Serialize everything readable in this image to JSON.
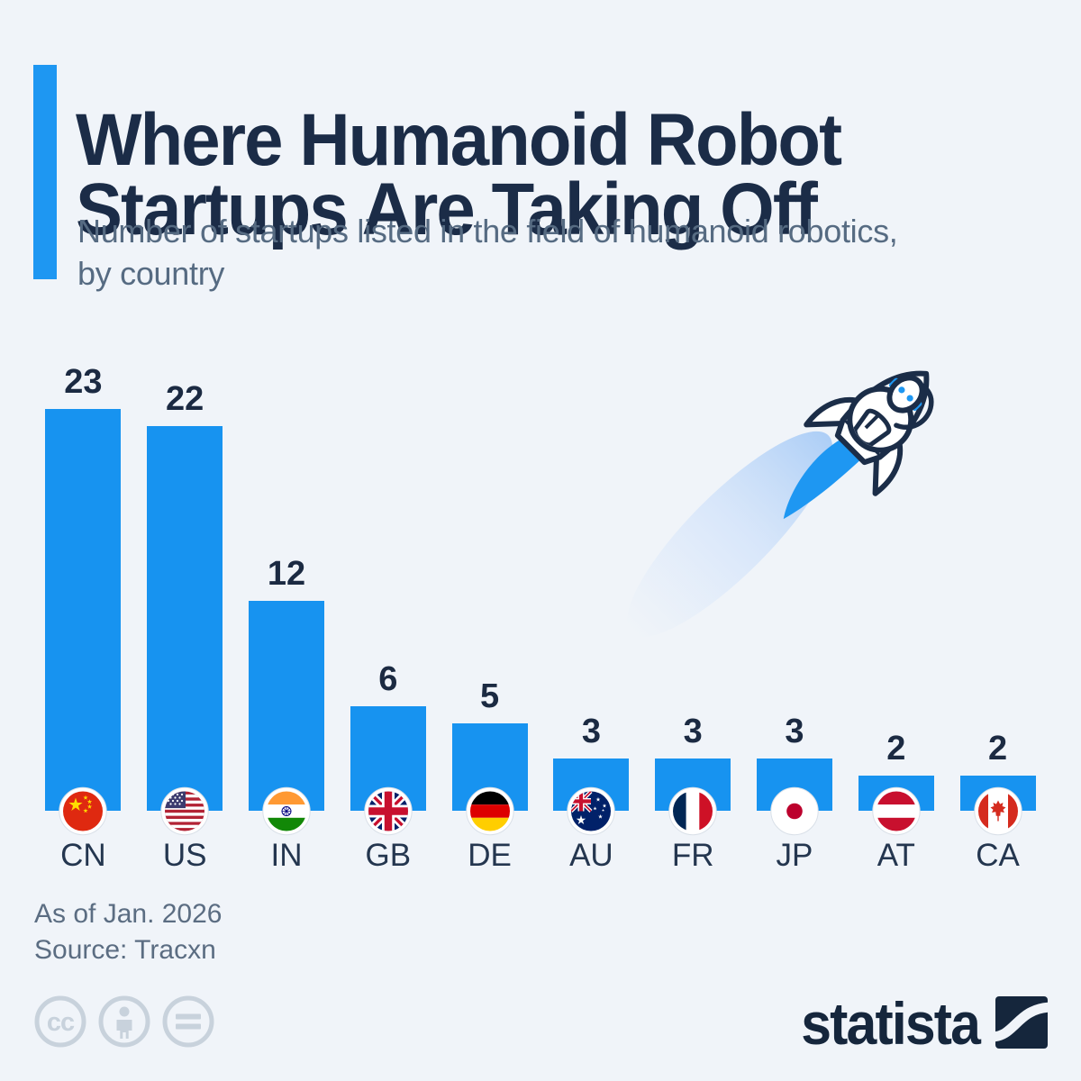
{
  "header": {
    "title_lines": [
      "Where Humanoid Robot",
      "Startups Are Taking Off"
    ],
    "subtitle_lines": [
      "Number of startups listed in the field of humanoid robotics,",
      "by country"
    ]
  },
  "chart_data": {
    "type": "bar",
    "title": "Where Humanoid Robot Startups Are Taking Off",
    "subtitle": "Number of startups listed in the field of humanoid robotics, by country",
    "categories": [
      "CN",
      "US",
      "IN",
      "GB",
      "DE",
      "AU",
      "FR",
      "JP",
      "AT",
      "CA"
    ],
    "values": [
      23,
      22,
      12,
      6,
      5,
      3,
      3,
      3,
      2,
      2
    ],
    "value_labels_shown": true,
    "grid": false,
    "axes_shown": false,
    "ylim": [
      0,
      23
    ],
    "bar_color": "#1793f0",
    "flag_icons": [
      "cn-flag-icon",
      "us-flag-icon",
      "in-flag-icon",
      "gb-flag-icon",
      "de-flag-icon",
      "au-flag-icon",
      "fr-flag-icon",
      "jp-flag-icon",
      "at-flag-icon",
      "ca-flag-icon"
    ]
  },
  "illustration": {
    "name": "robot-in-rocket",
    "outline_color": "#1b2d48",
    "flame_color": "#1e97f2"
  },
  "footer": {
    "as_of": "As of Jan. 2026",
    "source": "Source: Tracxn",
    "license_icons": [
      "cc-icon",
      "cc-by-icon",
      "cc-nd-icon"
    ],
    "brand": "statista"
  },
  "colors": {
    "background": "#f0f4f9",
    "accent_blue": "#1e97f2",
    "title_navy": "#1b2c47",
    "muted_text": "#5b6d82"
  }
}
